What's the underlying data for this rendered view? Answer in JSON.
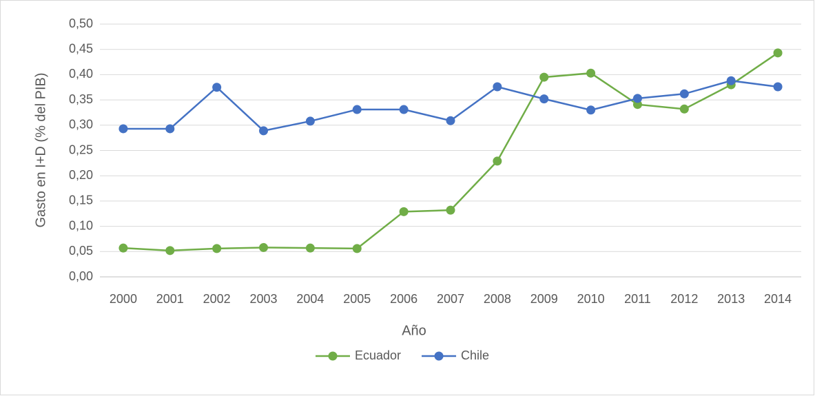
{
  "chart_data": {
    "type": "line",
    "x_label": "Año",
    "y_label": "Gasto en I+D (% del PIB)",
    "categories": [
      "2000",
      "2001",
      "2002",
      "2003",
      "2004",
      "2005",
      "2006",
      "2007",
      "2008",
      "2009",
      "2010",
      "2011",
      "2012",
      "2013",
      "2014"
    ],
    "series": [
      {
        "name": "Ecuador",
        "color": "#70ad47",
        "values": [
          0.057,
          0.052,
          0.056,
          0.058,
          0.057,
          0.056,
          0.129,
          0.132,
          0.229,
          0.395,
          0.403,
          0.341,
          0.332,
          0.38,
          0.443
        ]
      },
      {
        "name": "Chile",
        "color": "#4472c4",
        "values": [
          0.293,
          0.293,
          0.375,
          0.289,
          0.308,
          0.331,
          0.331,
          0.309,
          0.376,
          0.352,
          0.33,
          0.353,
          0.362,
          0.388,
          0.376
        ]
      }
    ],
    "ylim": [
      0,
      0.5
    ],
    "yticks": [
      {
        "value": 0,
        "label": "0,00"
      },
      {
        "value": 0.05,
        "label": "0,05"
      },
      {
        "value": 0.1,
        "label": "0,10"
      },
      {
        "value": 0.15,
        "label": "0,15"
      },
      {
        "value": 0.2,
        "label": "0,20"
      },
      {
        "value": 0.25,
        "label": "0,25"
      },
      {
        "value": 0.3,
        "label": "0,30"
      },
      {
        "value": 0.35,
        "label": "0,35"
      },
      {
        "value": 0.4,
        "label": "0,40"
      },
      {
        "value": 0.45,
        "label": "0,45"
      },
      {
        "value": 0.5,
        "label": "0,50"
      }
    ],
    "grid": true,
    "legend": "bottom"
  }
}
